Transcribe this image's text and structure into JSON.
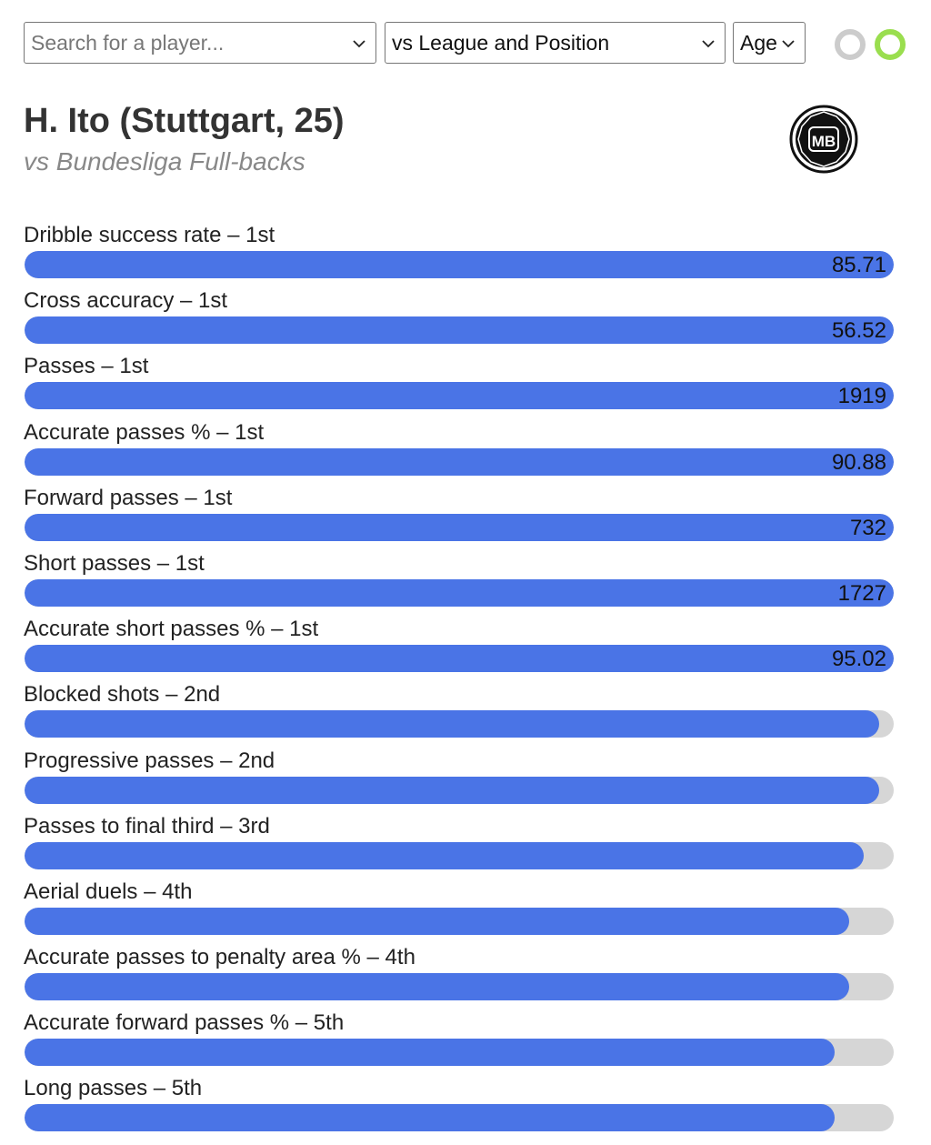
{
  "controls": {
    "search_placeholder": "Search for a player...",
    "comparison_selected": "vs League and Position",
    "sort_selected": "Age"
  },
  "header": {
    "title": "H. Ito (Stuttgart, 25)",
    "subtitle": "vs Bundesliga Full-backs",
    "logo_text": "MB"
  },
  "colors": {
    "bar_fill": "#4a74e6",
    "bar_track": "#d6d6d6",
    "toggle_active": "#9ade4f",
    "toggle_inactive": "#cccccc"
  },
  "stats": [
    {
      "label": "Dribble success rate – 1st",
      "value": "85.71",
      "percentile": 100
    },
    {
      "label": "Cross accuracy – 1st",
      "value": "56.52",
      "percentile": 100
    },
    {
      "label": "Passes – 1st",
      "value": "1919",
      "percentile": 100
    },
    {
      "label": "Accurate passes % – 1st",
      "value": "90.88",
      "percentile": 100
    },
    {
      "label": "Forward passes – 1st",
      "value": "732",
      "percentile": 100
    },
    {
      "label": "Short passes – 1st",
      "value": "1727",
      "percentile": 100
    },
    {
      "label": "Accurate short passes % – 1st",
      "value": "95.02",
      "percentile": 100
    },
    {
      "label": "Blocked shots – 2nd",
      "value": "",
      "percentile": 98.3
    },
    {
      "label": "Progressive passes – 2nd",
      "value": "",
      "percentile": 98.3
    },
    {
      "label": "Passes to final third – 3rd",
      "value": "",
      "percentile": 96.6
    },
    {
      "label": "Aerial duels – 4th",
      "value": "",
      "percentile": 94.9
    },
    {
      "label": "Accurate passes to penalty area % – 4th",
      "value": "",
      "percentile": 94.9
    },
    {
      "label": "Accurate forward passes % – 5th",
      "value": "",
      "percentile": 93.2
    },
    {
      "label": "Long passes – 5th",
      "value": "",
      "percentile": 93.2
    }
  ]
}
